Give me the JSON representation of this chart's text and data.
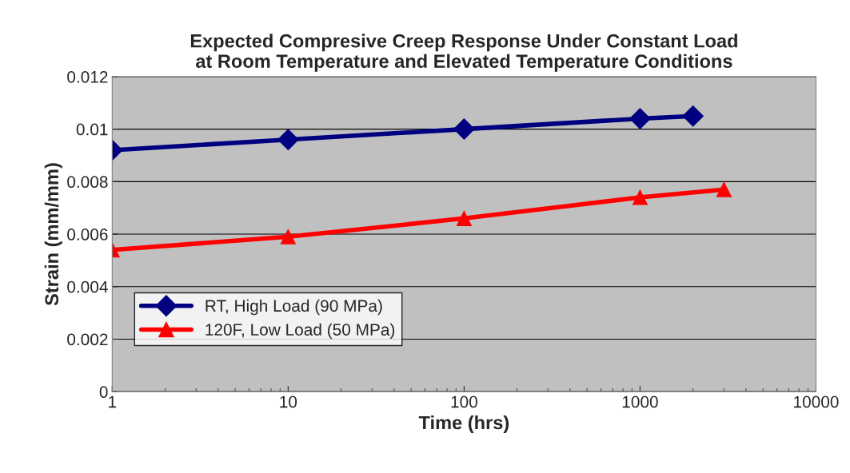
{
  "chart_data": {
    "type": "line",
    "title": "Expected Compresive Creep Response Under Constant Load\nat Room Temperature and Elevated Temperature Conditions",
    "xlabel": "Time (hrs)",
    "ylabel": "Strain (mm/mm)",
    "log": "x",
    "xlim": [
      1,
      10000
    ],
    "xticks": [
      1,
      10,
      100,
      1000,
      10000
    ],
    "ylim": [
      0,
      0.012
    ],
    "yticks": [
      0,
      0.002,
      0.004,
      0.006,
      0.008,
      0.01,
      0.012
    ],
    "grid": "y",
    "legend": "bottom left",
    "series": [
      {
        "name": "RT, High Load (90 MPa)",
        "color": "#000080",
        "marker": "diamond",
        "x": [
          1,
          10,
          100,
          1000,
          2000
        ],
        "values": [
          0.0092,
          0.0096,
          0.01,
          0.0104,
          0.0105
        ]
      },
      {
        "name": "120F, Low Load (50 MPa)",
        "color": "#ff0000",
        "marker": "triangle",
        "x": [
          1,
          10,
          100,
          1000,
          3000
        ],
        "values": [
          0.0054,
          0.0059,
          0.0066,
          0.0074,
          0.0077
        ]
      }
    ]
  }
}
